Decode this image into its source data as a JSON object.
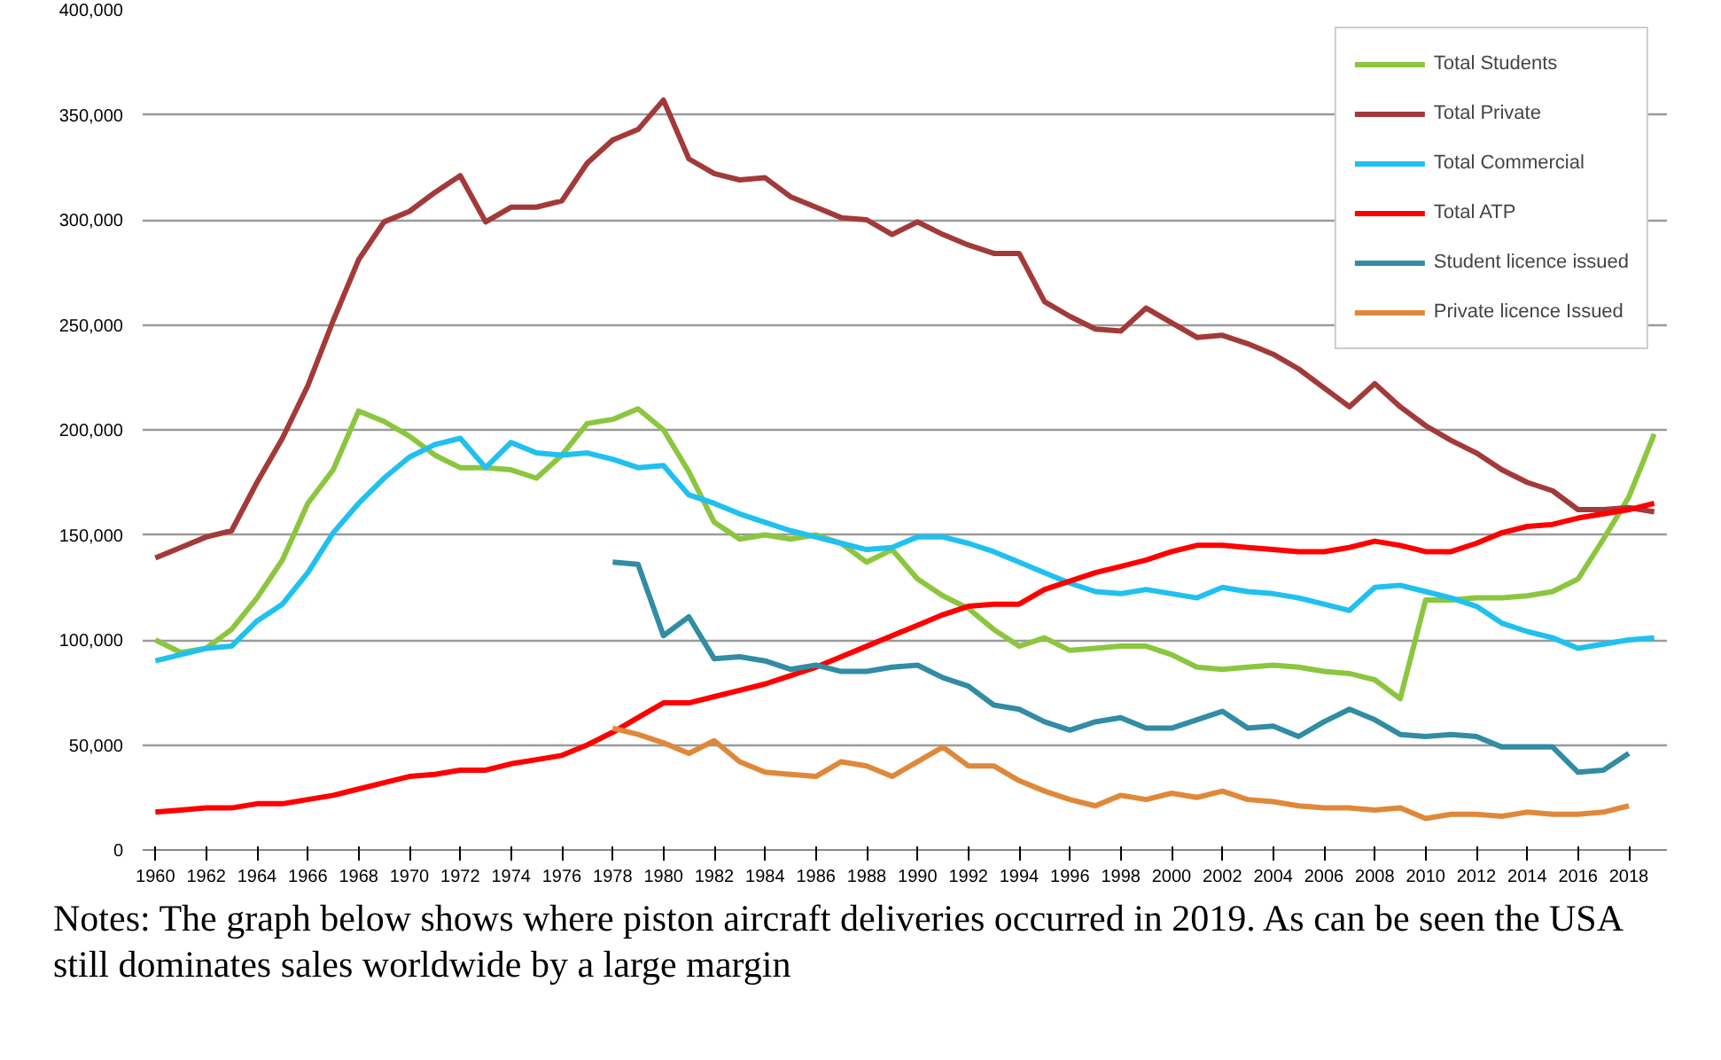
{
  "chart_data": {
    "type": "line",
    "x": [
      1960,
      1961,
      1962,
      1963,
      1964,
      1965,
      1966,
      1967,
      1968,
      1969,
      1970,
      1971,
      1972,
      1973,
      1974,
      1975,
      1976,
      1977,
      1978,
      1979,
      1980,
      1981,
      1982,
      1983,
      1984,
      1985,
      1986,
      1987,
      1988,
      1989,
      1990,
      1991,
      1992,
      1993,
      1994,
      1995,
      1996,
      1997,
      1998,
      1999,
      2000,
      2001,
      2002,
      2003,
      2004,
      2005,
      2006,
      2007,
      2008,
      2009,
      2010,
      2011,
      2012,
      2013,
      2014,
      2015,
      2016,
      2017,
      2018,
      2019
    ],
    "series": [
      {
        "name": "Total Students",
        "color": "#8cc63f",
        "values": [
          100000,
          94000,
          96000,
          105000,
          120000,
          138000,
          165000,
          181000,
          209000,
          204000,
          197000,
          188000,
          182000,
          182000,
          181000,
          177000,
          188000,
          203000,
          205000,
          210000,
          200000,
          180000,
          156000,
          148000,
          150000,
          148000,
          150000,
          146000,
          137000,
          143000,
          129000,
          121000,
          115000,
          105000,
          97000,
          101000,
          95000,
          96000,
          97000,
          97000,
          93000,
          87000,
          86000,
          87000,
          88000,
          87000,
          85000,
          84000,
          81000,
          72000,
          119000,
          119000,
          120000,
          120000,
          121000,
          123000,
          129000,
          148000,
          168000,
          198000
        ]
      },
      {
        "name": "Total Private",
        "color": "#a33a3a",
        "values": [
          139000,
          144000,
          149000,
          152000,
          175000,
          196000,
          221000,
          252000,
          281000,
          299000,
          304000,
          313000,
          321000,
          299000,
          306000,
          306000,
          309000,
          327000,
          338000,
          343000,
          357000,
          329000,
          322000,
          319000,
          320000,
          311000,
          306000,
          301000,
          300000,
          293000,
          299000,
          293000,
          288000,
          284000,
          284000,
          261000,
          254000,
          248000,
          247000,
          258000,
          251000,
          244000,
          245000,
          241000,
          236000,
          229000,
          220000,
          211000,
          222000,
          211000,
          202000,
          195000,
          189000,
          181000,
          175000,
          171000,
          162000,
          162000,
          163000,
          161000
        ]
      },
      {
        "name": "Total Commercial",
        "color": "#20c0f0",
        "values": [
          90000,
          93000,
          96000,
          97000,
          109000,
          117000,
          132000,
          151000,
          165000,
          177000,
          187000,
          193000,
          196000,
          182000,
          194000,
          189000,
          188000,
          189000,
          186000,
          182000,
          183000,
          169000,
          165000,
          160000,
          156000,
          152000,
          149000,
          146000,
          143000,
          144000,
          149000,
          149000,
          146000,
          142000,
          137000,
          132000,
          127000,
          123000,
          122000,
          124000,
          122000,
          120000,
          125000,
          123000,
          122000,
          120000,
          117000,
          114000,
          125000,
          126000,
          123000,
          120000,
          116000,
          108000,
          104000,
          101000,
          96000,
          98000,
          100000,
          101000
        ]
      },
      {
        "name": "Total ATP",
        "color": "#ff0000",
        "values": [
          18000,
          19000,
          20000,
          20000,
          22000,
          22000,
          24000,
          26000,
          29000,
          32000,
          35000,
          36000,
          38000,
          38000,
          41000,
          43000,
          45000,
          50000,
          56000,
          63000,
          70000,
          70000,
          73000,
          76000,
          79000,
          83000,
          87000,
          92000,
          97000,
          102000,
          107000,
          112000,
          116000,
          117000,
          117000,
          124000,
          128000,
          132000,
          135000,
          138000,
          142000,
          145000,
          145000,
          144000,
          143000,
          142000,
          142000,
          144000,
          147000,
          145000,
          142000,
          142000,
          146000,
          151000,
          154000,
          155000,
          158000,
          160000,
          162000,
          165000
        ]
      },
      {
        "name": "Student licence issued",
        "color": "#318ca4",
        "values": [
          null,
          null,
          null,
          null,
          null,
          null,
          null,
          null,
          null,
          null,
          null,
          null,
          null,
          null,
          null,
          null,
          null,
          null,
          137000,
          136000,
          102000,
          111000,
          91000,
          92000,
          90000,
          86000,
          88000,
          85000,
          85000,
          87000,
          88000,
          82000,
          78000,
          69000,
          67000,
          61000,
          57000,
          61000,
          63000,
          58000,
          58000,
          62000,
          66000,
          58000,
          59000,
          54000,
          61000,
          67000,
          62000,
          55000,
          54000,
          55000,
          54000,
          49000,
          49000,
          49000,
          37000,
          38000,
          46000,
          null
        ]
      },
      {
        "name": "Private licence Issued",
        "color": "#e0883a",
        "values": [
          null,
          null,
          null,
          null,
          null,
          null,
          null,
          null,
          null,
          null,
          null,
          null,
          null,
          null,
          null,
          null,
          null,
          null,
          58000,
          55000,
          51000,
          46000,
          52000,
          42000,
          37000,
          36000,
          35000,
          42000,
          40000,
          35000,
          42000,
          49000,
          40000,
          40000,
          33000,
          28000,
          24000,
          21000,
          26000,
          24000,
          27000,
          25000,
          28000,
          24000,
          23000,
          21000,
          20000,
          20000,
          19000,
          20000,
          15000,
          17000,
          17000,
          16000,
          18000,
          17000,
          17000,
          18000,
          21000,
          null
        ]
      }
    ],
    "xlim": [
      1959.5,
      2019.5
    ],
    "xticks": [
      1960,
      1962,
      1964,
      1966,
      1968,
      1970,
      1972,
      1974,
      1976,
      1978,
      1980,
      1982,
      1984,
      1986,
      1988,
      1990,
      1992,
      1994,
      1996,
      1998,
      2000,
      2002,
      2004,
      2006,
      2008,
      2010,
      2012,
      2014,
      2016,
      2018
    ],
    "ylim": [
      0,
      400000
    ],
    "yticks": [
      0,
      {
        "value": 50000,
        "label": "50,000"
      },
      {
        "value": 100000,
        "label": "100,000"
      },
      {
        "value": 150000,
        "label": "150,000"
      },
      {
        "value": 200000,
        "label": "200,000"
      },
      {
        "value": 250000,
        "label": "250,000"
      },
      {
        "value": 300000,
        "label": "300,000"
      },
      {
        "value": 350000,
        "label": "350,000"
      },
      {
        "value": 400000,
        "label": "400,000"
      }
    ],
    "grid": "y",
    "legend": "top right",
    "line_style": "solid",
    "annotations": [
      "Notes: The graph below shows where piston aircraft deliveries occurred in 2019. As can be seen the USA still dominates sales worldwide by a large margin"
    ]
  }
}
